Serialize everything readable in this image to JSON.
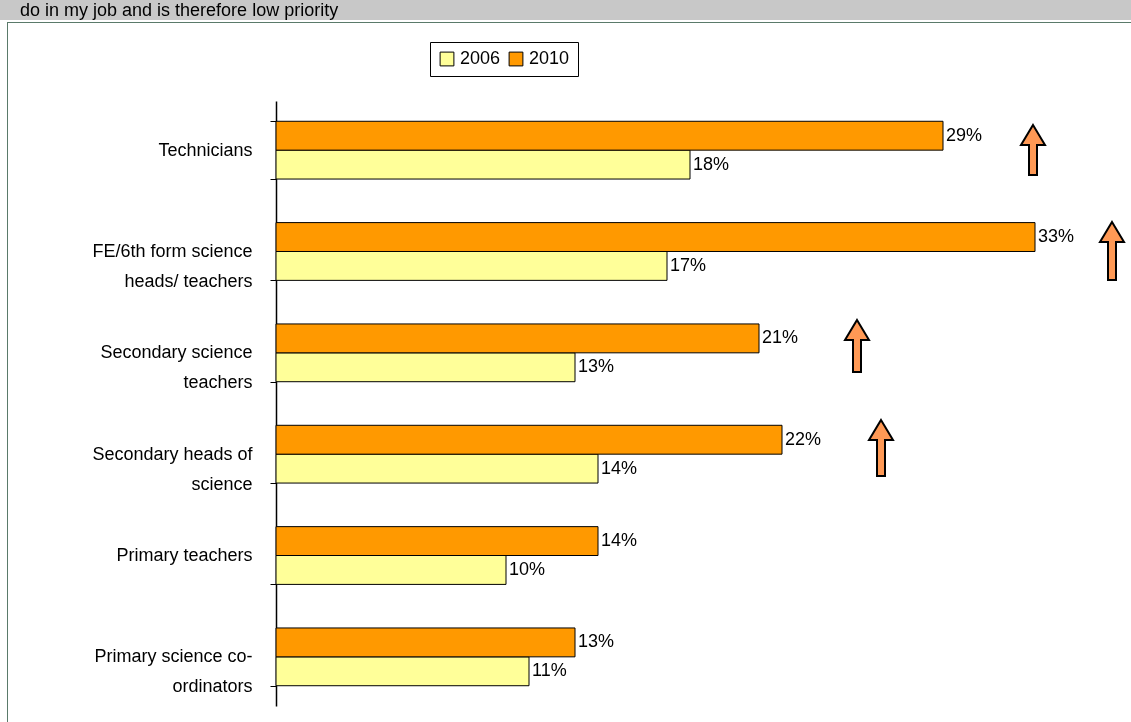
{
  "chart_data": {
    "type": "bar",
    "orientation": "horizontal",
    "title": "do in my job and is therefore low priority",
    "categories": [
      "Technicians",
      "FE/6th form science heads/ teachers",
      "Secondary science teachers",
      "Secondary heads of science",
      "Primary teachers",
      "Primary science co-ordinators"
    ],
    "series": [
      {
        "name": "2006",
        "color": "#ffff99",
        "values": [
          18,
          17,
          13,
          14,
          10,
          11
        ],
        "value_labels": [
          "18%",
          "17%",
          "13%",
          "14%",
          "10%",
          "11%"
        ]
      },
      {
        "name": "2010",
        "color": "#ff9900",
        "values": [
          29,
          33,
          21,
          22,
          14,
          13
        ],
        "value_labels": [
          "29%",
          "33%",
          "21%",
          "22%",
          "14%",
          "13%"
        ]
      }
    ],
    "legend": "top"
  }
}
